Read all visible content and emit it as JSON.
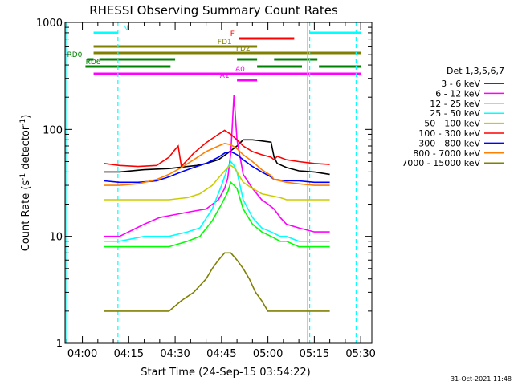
{
  "chart_data": {
    "type": "line",
    "title": "RHESSI Observing Summary Count Rates",
    "xlabel": "Start Time (24-Sep-15 03:54:22)",
    "ylabel_main": "Count Rate (s",
    "ylabel_sup1": "-1",
    "ylabel_mid": " detector",
    "ylabel_sup2": "-1",
    "ylabel_end": ")",
    "yscale": "log",
    "ylim": [
      1,
      1000
    ],
    "xlim_minutes": [
      3.633,
      40.0
    ],
    "y_ticks": [
      "1",
      "10",
      "100",
      "1000"
    ],
    "x_ticks": [
      {
        "label": "04:00",
        "min": 0
      },
      {
        "label": "04:15",
        "min": 15
      },
      {
        "label": "04:30",
        "min": 30
      },
      {
        "label": "04:45",
        "min": 45
      },
      {
        "label": "05:00",
        "min": 60
      },
      {
        "label": "05:15",
        "min": 75
      },
      {
        "label": "05:30",
        "min": 90
      }
    ],
    "detector_label": "Det 1,3,5,6,7",
    "timestamp": "31-Oct-2021 11:48",
    "series": [
      {
        "name": "3 - 6 keV",
        "color": "#000000",
        "x": [
          7,
          12,
          20,
          28,
          34,
          37,
          40,
          44,
          47,
          50,
          52,
          55,
          58,
          61,
          62,
          63,
          66,
          70,
          75,
          80
        ],
        "y": [
          40,
          40,
          42,
          43,
          45,
          46,
          48,
          52,
          60,
          70,
          80,
          80,
          78,
          76,
          55,
          48,
          44,
          41,
          40,
          38
        ]
      },
      {
        "name": "6 - 12 keV",
        "color": "#ff00ff",
        "x": [
          7,
          12,
          20,
          25,
          30,
          35,
          40,
          44,
          46,
          47,
          48,
          49,
          50,
          52,
          55,
          58,
          60,
          62,
          64,
          66,
          70,
          75,
          80
        ],
        "y": [
          10,
          10,
          13,
          15,
          16,
          17,
          18,
          22,
          28,
          35,
          60,
          210,
          80,
          38,
          28,
          22,
          20,
          18,
          15,
          13,
          12,
          11,
          11
        ]
      },
      {
        "name": "12 - 25 keV",
        "color": "#00ff00",
        "x": [
          7,
          12,
          20,
          28,
          34,
          38,
          42,
          45,
          47,
          48,
          49,
          50,
          52,
          55,
          58,
          61,
          64,
          66,
          70,
          75,
          80
        ],
        "y": [
          8,
          8,
          8,
          8,
          9,
          10,
          14,
          20,
          26,
          32,
          30,
          28,
          18,
          13,
          11,
          10,
          9,
          9,
          8,
          8,
          8
        ]
      },
      {
        "name": "25 - 50 keV",
        "color": "#00ffff",
        "x": [
          7,
          12,
          20,
          28,
          34,
          38,
          42,
          45,
          47,
          48,
          49,
          50,
          52,
          55,
          58,
          61,
          64,
          66,
          70,
          75,
          80
        ],
        "y": [
          9,
          9,
          10,
          10,
          11,
          12,
          18,
          30,
          44,
          50,
          46,
          40,
          22,
          15,
          12,
          11,
          10,
          10,
          9,
          9,
          9
        ]
      },
      {
        "name": "50 - 100 keV",
        "color": "#cccc00",
        "x": [
          7,
          12,
          20,
          28,
          34,
          38,
          42,
          45,
          47,
          48,
          49,
          50,
          52,
          55,
          58,
          61,
          64,
          66,
          70,
          75,
          80
        ],
        "y": [
          22,
          22,
          22,
          22,
          23,
          25,
          30,
          38,
          44,
          46,
          44,
          40,
          32,
          28,
          25,
          24,
          23,
          22,
          22,
          22,
          22
        ]
      },
      {
        "name": "100 - 300 keV",
        "color": "#ff0000",
        "x": [
          7,
          12,
          18,
          24,
          28,
          30,
          31,
          32,
          36,
          40,
          44,
          46,
          48,
          50,
          52,
          55,
          58,
          61,
          62,
          63,
          66,
          70,
          75,
          80
        ],
        "y": [
          48,
          46,
          45,
          46,
          55,
          65,
          70,
          45,
          60,
          75,
          90,
          98,
          90,
          80,
          70,
          62,
          58,
          55,
          52,
          56,
          52,
          50,
          48,
          47
        ]
      },
      {
        "name": "300 - 800 keV",
        "color": "#0000ff",
        "x": [
          7,
          12,
          18,
          24,
          28,
          32,
          36,
          40,
          44,
          46,
          48,
          50,
          52,
          55,
          58,
          61,
          62,
          66,
          70,
          75,
          80
        ],
        "y": [
          33,
          32,
          32,
          33,
          36,
          40,
          44,
          48,
          55,
          60,
          62,
          58,
          52,
          45,
          40,
          36,
          34,
          33,
          33,
          32,
          32
        ]
      },
      {
        "name": "800 - 7000 keV",
        "color": "#ff8000",
        "x": [
          7,
          12,
          18,
          24,
          28,
          32,
          36,
          40,
          44,
          46,
          48,
          50,
          52,
          55,
          58,
          61,
          62,
          66,
          70,
          75,
          80
        ],
        "y": [
          30,
          30,
          31,
          34,
          38,
          44,
          52,
          62,
          70,
          74,
          72,
          66,
          58,
          50,
          42,
          37,
          34,
          32,
          31,
          30,
          30
        ]
      },
      {
        "name": "7000 - 15000 keV",
        "color": "#808000",
        "x": [
          7,
          12,
          18,
          24,
          28,
          32,
          36,
          40,
          42,
          44,
          46,
          48,
          50,
          52,
          54,
          56,
          58,
          60,
          62,
          66,
          70,
          75,
          80
        ],
        "y": [
          2,
          2,
          2,
          2,
          2,
          2.5,
          3,
          4,
          5,
          6,
          7,
          7,
          6,
          5,
          4,
          3,
          2.5,
          2,
          2,
          2,
          2,
          2,
          2
        ]
      }
    ],
    "flag_bars": [
      {
        "label": "N",
        "color": "#00ffff",
        "label_pos": 14,
        "segments": [
          [
            3.633,
            11.5
          ],
          [
            73.5,
            90
          ]
        ]
      },
      {
        "label": "F",
        "color": "#ff0000",
        "label_pos": 48.5,
        "segments": [
          [
            50.5,
            68.5
          ]
        ]
      },
      {
        "label": "FD1",
        "color": "#808000",
        "label_pos": 46,
        "segments": [
          [
            3.633,
            50
          ],
          [
            50,
            56.5
          ]
        ]
      },
      {
        "label": "FD2",
        "color": "#808000",
        "label_pos": 52,
        "segments": [
          [
            3.633,
            90
          ]
        ]
      },
      {
        "label": "RD0",
        "color": "#008000",
        "label_pos": -2.5,
        "segments": [
          [
            3.633,
            1.5
          ],
          [
            5.5,
            30
          ],
          [
            50,
            56.5
          ],
          [
            62,
            76
          ]
        ]
      },
      {
        "label": "RD6",
        "color": "#008000",
        "label_pos": 3.5,
        "segments": [
          [
            3.633,
            1
          ],
          [
            1.5,
            28.5
          ],
          [
            56.5,
            71
          ],
          [
            76.5,
            90
          ]
        ]
      },
      {
        "label": "A0",
        "color": "#ff00ff",
        "label_pos": 51,
        "segments": [
          [
            3.633,
            90
          ]
        ]
      },
      {
        "label": "A1",
        "color": "#ff00ff",
        "label_pos": 46,
        "segments": [
          [
            50,
            56.5
          ]
        ]
      }
    ],
    "vlines": [
      {
        "min": 11.5,
        "color": "#00ffff",
        "dashed": true
      },
      {
        "min": 73.5,
        "color": "#00ffff",
        "dashed": true
      },
      {
        "min": 88.5,
        "color": "#00ffff",
        "dashed": true
      },
      {
        "min": 72.8,
        "color": "#00ffff",
        "dashed": false
      }
    ]
  }
}
